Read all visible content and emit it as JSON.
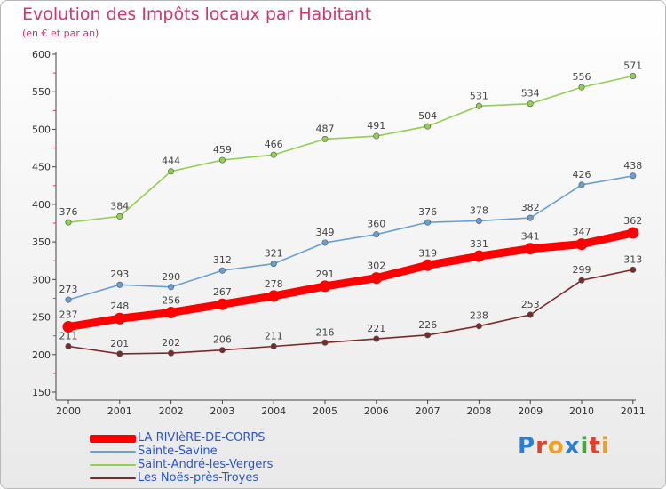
{
  "header": {
    "title": "Evolution des Impôts locaux par Habitant",
    "subtitle": "(en € et par an)"
  },
  "logo": {
    "text": "Proxiti",
    "letter_colors": [
      "#2b7fd0",
      "#e0412b",
      "#f0a020",
      "#2b7fd0",
      "#46a640",
      "#e0412b",
      "#f0a020"
    ]
  },
  "chart_data": {
    "type": "line",
    "title": "Evolution des Impôts locaux par Habitant",
    "subtitle": "(en € et par an)",
    "xlabel": "",
    "ylabel": "",
    "x": [
      "2000",
      "2001",
      "2002",
      "2003",
      "2004",
      "2005",
      "2006",
      "2007",
      "2008",
      "2009",
      "2010",
      "2011"
    ],
    "ylim": [
      150,
      600
    ],
    "yticks": [
      150,
      200,
      250,
      300,
      350,
      400,
      450,
      500,
      550,
      600
    ],
    "grid": false,
    "legend_position": "bottom-left",
    "series": [
      {
        "name": "LA RIVIèRE-DE-CORPS",
        "values": [
          237,
          248,
          256,
          267,
          278,
          291,
          302,
          319,
          331,
          341,
          347,
          362
        ],
        "color": "#ff0000",
        "emphasis": true
      },
      {
        "name": "Sainte-Savine",
        "values": [
          273,
          293,
          290,
          312,
          321,
          349,
          360,
          376,
          378,
          382,
          426,
          438
        ],
        "color": "#6a9fd6",
        "emphasis": false
      },
      {
        "name": "Saint-André-les-Vergers",
        "values": [
          376,
          384,
          444,
          459,
          466,
          487,
          491,
          504,
          531,
          534,
          556,
          571
        ],
        "color": "#92d050",
        "emphasis": false
      },
      {
        "name": "Les Noës-près-Troyes",
        "values": [
          211,
          201,
          202,
          206,
          211,
          216,
          221,
          226,
          238,
          253,
          299,
          313
        ],
        "color": "#7b2a2a",
        "emphasis": false
      }
    ]
  }
}
